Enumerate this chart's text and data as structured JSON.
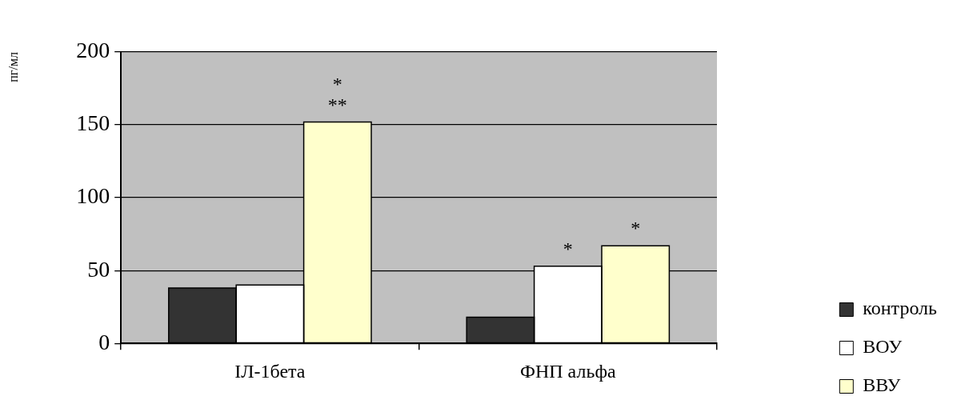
{
  "chart_data": {
    "type": "bar",
    "categories": [
      "ІЛ-1бета",
      "ФНП альфа"
    ],
    "ylabel": "пг/мл",
    "series": [
      {
        "name": "контроль",
        "color": "#333333",
        "values": [
          38,
          18
        ]
      },
      {
        "name": "ВОУ",
        "color": "#ffffff",
        "values": [
          40,
          53
        ],
        "value_labels": [
          null,
          "*"
        ]
      },
      {
        "name": "ВВУ",
        "color": "#ffffcc",
        "values": [
          152,
          67
        ],
        "value_labels": [
          "*\n**",
          "*"
        ]
      }
    ],
    "ylim": [
      0,
      200
    ],
    "yticks": [
      0,
      50,
      100,
      150,
      200
    ],
    "grid": "y",
    "legend": "bottom right"
  }
}
